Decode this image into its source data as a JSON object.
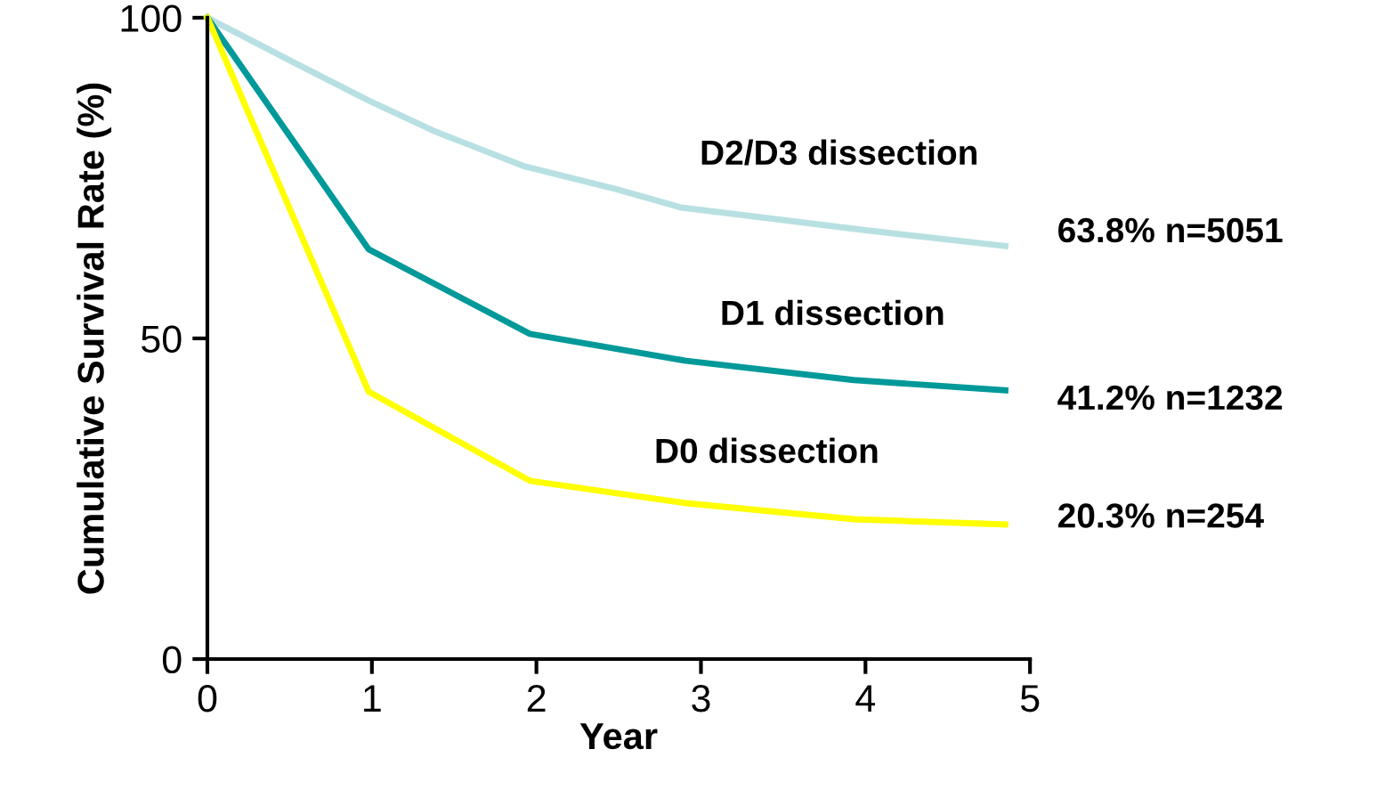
{
  "chart_data": {
    "type": "line",
    "xlabel": "Year",
    "ylabel": "Cumulative Survival Rate (%)",
    "xlim": [
      0,
      5
    ],
    "ylim": [
      0,
      100
    ],
    "xticks": [
      0,
      1,
      2,
      3,
      4,
      5
    ],
    "yticks": [
      0,
      50,
      100
    ],
    "grid": false,
    "legend": false,
    "marker": "none",
    "line_style": "solid",
    "series": [
      {
        "color": "#b8e0e2",
        "x": [
          0,
          0.52,
          0.98,
          1.39,
          1.93,
          2.48,
          2.88,
          3.99,
          4.85
        ],
        "values": [
          100,
          93.1,
          87.1,
          82.2,
          76.8,
          73.3,
          70.4,
          66.9,
          64.4
        ]
      },
      {
        "color": "#009999",
        "x": [
          0,
          0.98,
          1.96,
          2.91,
          3.93,
          4.85
        ],
        "values": [
          100,
          63.9,
          50.7,
          46.5,
          43.5,
          41.9
        ]
      },
      {
        "color": "#ffff00",
        "x": [
          0,
          0.98,
          1.96,
          2.91,
          3.93,
          4.85
        ],
        "values": [
          100,
          41.7,
          27.8,
          24.3,
          21.8,
          21.0
        ]
      }
    ],
    "annotations": [
      "D2/D3 dissection",
      "D1 dissection",
      "D0 dissection",
      "63.8% n=5051",
      "41.2% n=1232",
      "20.3% n=254"
    ]
  }
}
